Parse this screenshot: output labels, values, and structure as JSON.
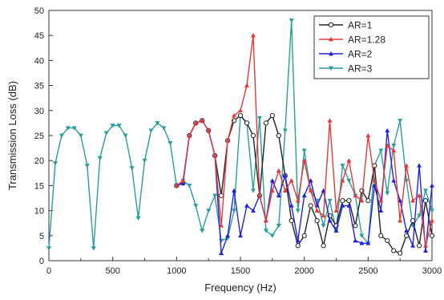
{
  "chart_data": {
    "type": "line",
    "title": "",
    "xlabel": "Frequency (Hz)",
    "ylabel": "Transmission Loss (dB)",
    "xlim": [
      0,
      3000
    ],
    "ylim": [
      0,
      50
    ],
    "xticks": [
      0,
      500,
      1000,
      1500,
      2000,
      2500,
      3000
    ],
    "yticks": [
      0,
      5,
      10,
      15,
      20,
      25,
      30,
      35,
      40,
      45,
      50
    ],
    "grid": false,
    "legend_position": "top-right",
    "series": [
      {
        "name": "AR=1",
        "color": "#222222",
        "marker": "circle",
        "x": [
          1000,
          1050,
          1100,
          1150,
          1200,
          1250,
          1300,
          1350,
          1400,
          1450,
          1500,
          1550,
          1600,
          1650,
          1700,
          1750,
          1800,
          1850,
          1900,
          1950,
          2000,
          2050,
          2100,
          2150,
          2200,
          2250,
          2300,
          2350,
          2400,
          2450,
          2500,
          2550,
          2600,
          2650,
          2700,
          2750,
          2800,
          2850,
          2900,
          2950,
          3000
        ],
        "y": [
          15,
          15.5,
          25,
          27.5,
          28,
          26,
          21,
          13,
          24,
          28,
          29,
          27.5,
          25,
          13,
          27.5,
          29,
          25,
          17,
          8,
          3,
          5,
          11,
          8,
          3,
          9,
          7,
          12,
          12,
          7,
          14,
          12,
          19,
          5,
          4,
          2,
          1.5,
          5,
          8,
          3,
          12,
          5
        ]
      },
      {
        "name": "AR=1.28",
        "color": "#e23a3a",
        "marker": "triangle-up",
        "x": [
          1000,
          1050,
          1100,
          1150,
          1200,
          1250,
          1300,
          1350,
          1400,
          1450,
          1500,
          1550,
          1600,
          1650,
          1700,
          1750,
          1800,
          1850,
          1900,
          1950,
          2000,
          2050,
          2100,
          2150,
          2200,
          2250,
          2300,
          2350,
          2400,
          2450,
          2500,
          2550,
          2600,
          2650,
          2700,
          2750,
          2800,
          2850,
          2900,
          2950,
          3000
        ],
        "y": [
          15,
          16,
          25,
          27.5,
          28,
          26,
          21,
          7,
          24,
          29,
          30,
          35,
          45,
          13,
          8,
          14,
          18,
          14,
          16,
          12,
          20,
          14,
          10,
          9,
          28,
          10,
          16,
          20,
          13,
          12,
          25,
          16,
          12,
          23,
          22,
          8,
          19,
          12,
          13,
          3,
          8
        ]
      },
      {
        "name": "AR=2",
        "color": "#2222dd",
        "marker": "triangle-up",
        "x": [
          1000,
          1050,
          1100,
          1150,
          1200,
          1250,
          1300,
          1350,
          1400,
          1450,
          1500,
          1550,
          1600,
          1650,
          1700,
          1750,
          1800,
          1850,
          1900,
          1950,
          2000,
          2050,
          2100,
          2150,
          2200,
          2250,
          2300,
          2350,
          2400,
          2450,
          2500,
          2550,
          2600,
          2650,
          2700,
          2750,
          2800,
          2850,
          2900,
          2950,
          3000
        ],
        "y": [
          15,
          15.5,
          25,
          27.5,
          28,
          26,
          21,
          1.5,
          5,
          14,
          5,
          11,
          10,
          13,
          8,
          16,
          13,
          17,
          11,
          4,
          13,
          16,
          11,
          14,
          8,
          6,
          11,
          11,
          4,
          3.5,
          3.5,
          15,
          10,
          26,
          16,
          12,
          6,
          3,
          19,
          2,
          15
        ]
      },
      {
        "name": "AR=3",
        "color": "#2a9d9d",
        "marker": "triangle-down",
        "x": [
          0,
          50,
          100,
          150,
          200,
          250,
          300,
          350,
          400,
          450,
          500,
          550,
          600,
          650,
          700,
          750,
          800,
          850,
          900,
          950,
          1000,
          1050,
          1100,
          1150,
          1200,
          1250,
          1300,
          1350,
          1400,
          1450,
          1500,
          1550,
          1600,
          1650,
          1700,
          1750,
          1800,
          1850,
          1900,
          1950,
          2000,
          2050,
          2100,
          2150,
          2200,
          2250,
          2300,
          2350,
          2400,
          2450,
          2500,
          2550,
          2600,
          2650,
          2700,
          2750,
          2800,
          2850,
          2900,
          2950,
          3000
        ],
        "y": [
          2.5,
          19.5,
          25,
          26.5,
          26.5,
          25,
          19,
          2.5,
          20.5,
          25.5,
          27,
          27,
          25,
          18.5,
          8.5,
          20,
          26,
          27.5,
          26.5,
          23.5,
          15,
          16,
          15,
          11,
          6,
          10,
          13,
          4,
          4.5,
          10,
          29,
          27.5,
          14,
          28.5,
          6,
          5,
          7,
          26,
          48,
          10,
          22,
          14,
          12,
          7,
          12,
          6,
          19,
          16,
          13,
          5,
          3.5,
          19,
          22,
          13.5,
          23,
          28,
          16,
          7,
          9,
          14,
          10
        ]
      }
    ]
  }
}
